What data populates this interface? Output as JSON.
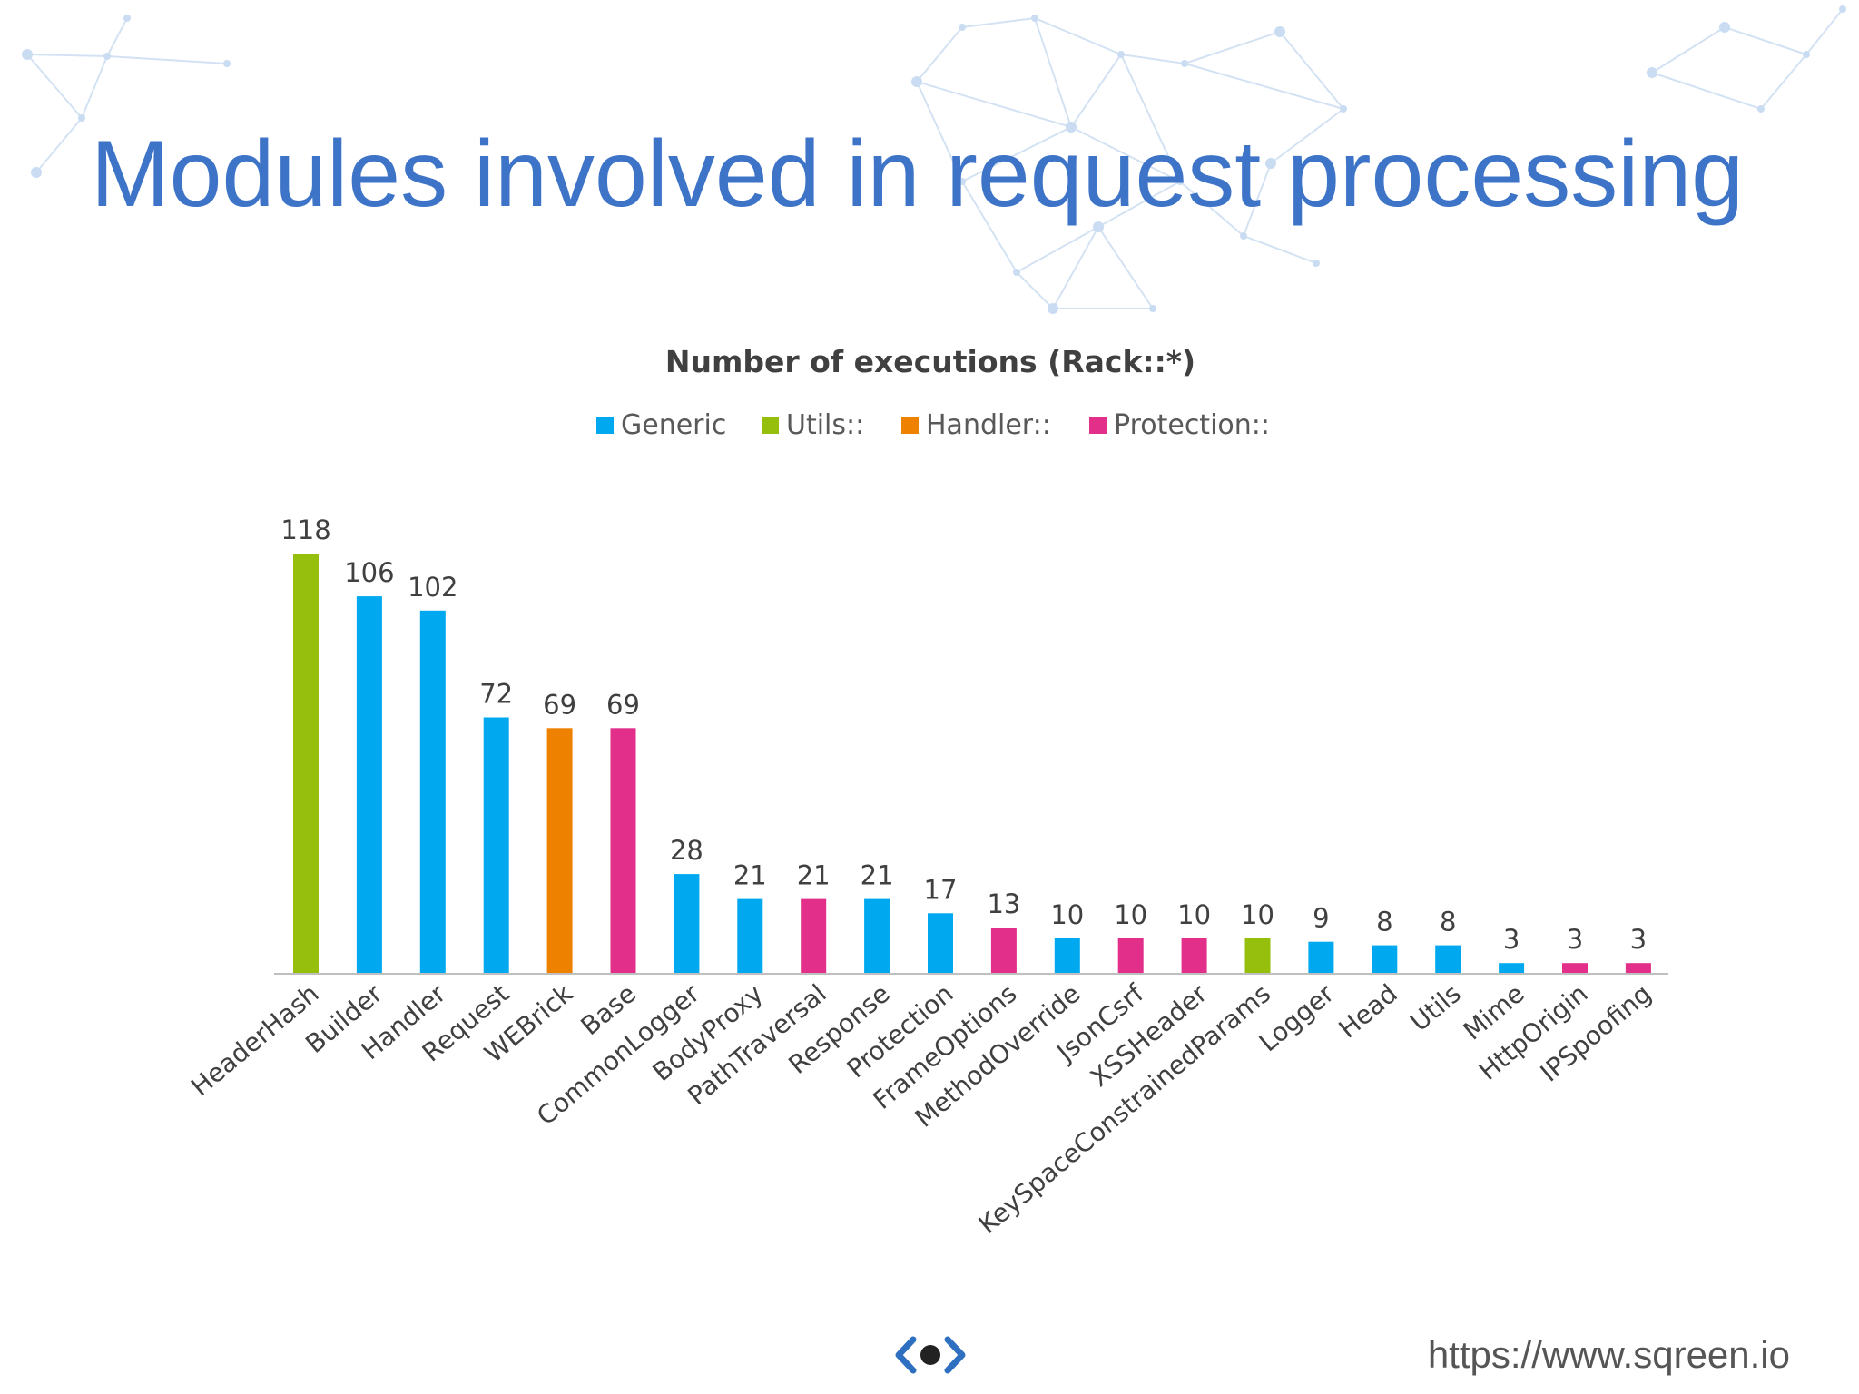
{
  "slide": {
    "title": "Modules involved in request processing",
    "footer_url": "https://www.sqreen.io"
  },
  "colors": {
    "title": "#3d74c8",
    "network_lines": "#c9dcf1",
    "Generic": "#00a9ef",
    "Utils::": "#96be0d",
    "Handler::": "#ee8100",
    "Protection::": "#e22f8a"
  },
  "chart_data": {
    "type": "bar",
    "title": "Number of executions (Rack::*)",
    "xlabel": "",
    "ylabel": "",
    "ylim": [
      0,
      118
    ],
    "legend_position": "top-center",
    "grid": false,
    "legend": [
      "Generic",
      "Utils::",
      "Handler::",
      "Protection::"
    ],
    "categories": [
      "HeaderHash",
      "Builder",
      "Handler",
      "Request",
      "WEBrick",
      "Base",
      "CommonLogger",
      "BodyProxy",
      "PathTraversal",
      "Response",
      "Protection",
      "FrameOptions",
      "MethodOverride",
      "JsonCsrf",
      "XSSHeader",
      "KeySpaceConstrainedParams",
      "Logger",
      "Head",
      "Utils",
      "Mime",
      "HttpOrigin",
      "IPSpoofing"
    ],
    "values": [
      118,
      106,
      102,
      72,
      69,
      69,
      28,
      21,
      21,
      21,
      17,
      13,
      10,
      10,
      10,
      10,
      9,
      8,
      8,
      3,
      3,
      3
    ],
    "groups": [
      "Utils::",
      "Generic",
      "Generic",
      "Generic",
      "Handler::",
      "Protection::",
      "Generic",
      "Generic",
      "Protection::",
      "Generic",
      "Generic",
      "Protection::",
      "Generic",
      "Protection::",
      "Protection::",
      "Utils::",
      "Generic",
      "Generic",
      "Generic",
      "Generic",
      "Protection::",
      "Protection::"
    ]
  }
}
